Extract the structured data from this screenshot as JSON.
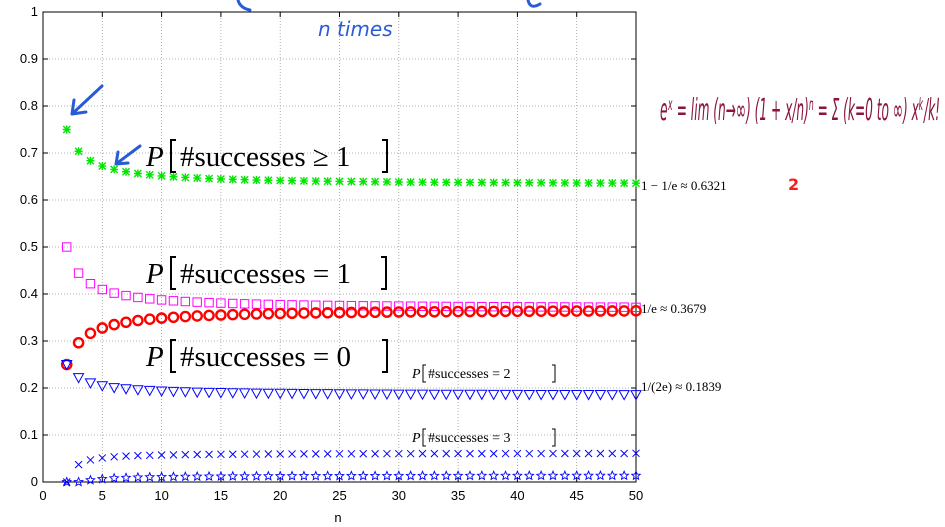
{
  "chart_data": {
    "type": "scatter",
    "xlabel": "n",
    "ylabel": "",
    "xlim": [
      0,
      50
    ],
    "ylim": [
      0,
      1
    ],
    "xticks": [
      0,
      5,
      10,
      15,
      20,
      25,
      30,
      35,
      40,
      45,
      50
    ],
    "yticks": [
      0,
      0.1,
      0.2,
      0.3,
      0.4,
      0.5,
      0.6,
      0.7,
      0.8,
      0.9,
      1
    ],
    "ytick_labels": [
      "0",
      "0.1",
      "0.2",
      "0.3",
      "0.4",
      "0.5",
      "0.6",
      "0.7",
      "0.8",
      "0.9",
      "1"
    ],
    "grid": true,
    "x": [
      2,
      3,
      4,
      5,
      6,
      7,
      8,
      9,
      10,
      11,
      12,
      13,
      14,
      15,
      16,
      17,
      18,
      19,
      20,
      21,
      22,
      23,
      24,
      25,
      26,
      27,
      28,
      29,
      30,
      31,
      32,
      33,
      34,
      35,
      36,
      37,
      38,
      39,
      40,
      41,
      42,
      43,
      44,
      45,
      46,
      47,
      48,
      49,
      50
    ],
    "series": [
      {
        "name": "P[#successes ≥ 1]",
        "marker": "asterisk",
        "color": "#00e600",
        "values": [
          0.75,
          0.7037,
          0.6836,
          0.6723,
          0.6651,
          0.6601,
          0.6564,
          0.6536,
          0.6513,
          0.6495,
          0.648,
          0.6467,
          0.6456,
          0.6447,
          0.6439,
          0.6432,
          0.6425,
          0.642,
          0.6415,
          0.641,
          0.6406,
          0.6402,
          0.6399,
          0.6396,
          0.6393,
          0.639,
          0.6388,
          0.6385,
          0.6383,
          0.6381,
          0.6379,
          0.6378,
          0.6376,
          0.6374,
          0.6373,
          0.6372,
          0.637,
          0.6369,
          0.6368,
          0.6367,
          0.6366,
          0.6365,
          0.6364,
          0.6363,
          0.6362,
          0.6361,
          0.6361,
          0.636,
          0.6358
        ]
      },
      {
        "name": "P[#successes = 1]",
        "marker": "square",
        "color": "#ff00ff",
        "values": [
          0.5,
          0.4444,
          0.4219,
          0.4096,
          0.4019,
          0.3966,
          0.3927,
          0.3897,
          0.3874,
          0.3855,
          0.384,
          0.3827,
          0.3816,
          0.3806,
          0.3798,
          0.3791,
          0.3785,
          0.3779,
          0.3774,
          0.3769,
          0.3765,
          0.3761,
          0.3758,
          0.3755,
          0.3752,
          0.3749,
          0.3747,
          0.3745,
          0.3743,
          0.3741,
          0.3739,
          0.3737,
          0.3736,
          0.3734,
          0.3733,
          0.3731,
          0.373,
          0.3729,
          0.3728,
          0.3727,
          0.3726,
          0.3725,
          0.3724,
          0.3723,
          0.3722,
          0.3721,
          0.3721,
          0.372,
          0.3716
        ]
      },
      {
        "name": "P[#successes = 0]",
        "marker": "circle",
        "color": "#ff0000",
        "values": [
          0.25,
          0.2963,
          0.3164,
          0.3277,
          0.3349,
          0.3399,
          0.3436,
          0.3464,
          0.3487,
          0.3505,
          0.352,
          0.3533,
          0.3544,
          0.3553,
          0.3561,
          0.3568,
          0.3575,
          0.358,
          0.3585,
          0.359,
          0.3594,
          0.3598,
          0.3601,
          0.3604,
          0.3607,
          0.361,
          0.3612,
          0.3615,
          0.3617,
          0.3619,
          0.3621,
          0.3622,
          0.3624,
          0.3626,
          0.3627,
          0.3628,
          0.363,
          0.3631,
          0.3632,
          0.3633,
          0.3634,
          0.3635,
          0.3636,
          0.3637,
          0.3638,
          0.3639,
          0.3639,
          0.364,
          0.3642
        ]
      },
      {
        "name": "P[#successes = 2]",
        "marker": "triangle-down",
        "color": "#0000ff",
        "values": [
          0.25,
          0.2222,
          0.2109,
          0.2048,
          0.2009,
          0.1983,
          0.1963,
          0.1949,
          0.1937,
          0.1928,
          0.192,
          0.1913,
          0.1908,
          0.1903,
          0.1899,
          0.1895,
          0.1892,
          0.1889,
          0.1887,
          0.1885,
          0.1883,
          0.1881,
          0.1879,
          0.1877,
          0.1876,
          0.1875,
          0.1873,
          0.1872,
          0.1871,
          0.187,
          0.1869,
          0.1868,
          0.1868,
          0.1867,
          0.1866,
          0.1866,
          0.1865,
          0.1864,
          0.1864,
          0.1863,
          0.1863,
          0.1862,
          0.1862,
          0.1861,
          0.1861,
          0.1861,
          0.186,
          0.186,
          0.1858
        ]
      },
      {
        "name": "P[#successes = 3]",
        "marker": "x",
        "color": "#0000ff",
        "values": [
          0.0,
          0.037,
          0.0469,
          0.0512,
          0.0536,
          0.0551,
          0.0561,
          0.0568,
          0.0574,
          0.0578,
          0.0582,
          0.0585,
          0.0587,
          0.0589,
          0.0591,
          0.0592,
          0.0594,
          0.0595,
          0.0596,
          0.0597,
          0.0598,
          0.0598,
          0.0599,
          0.06,
          0.06,
          0.0601,
          0.0601,
          0.0602,
          0.0602,
          0.0602,
          0.0603,
          0.0603,
          0.0603,
          0.0604,
          0.0604,
          0.0604,
          0.0604,
          0.0605,
          0.0605,
          0.0605,
          0.0605,
          0.0605,
          0.0606,
          0.0606,
          0.0606,
          0.0606,
          0.0606,
          0.0606,
          0.061
        ]
      },
      {
        "name": "",
        "marker": "star",
        "color": "#0000ff",
        "values": [
          0.0,
          0.0,
          0.0039,
          0.0064,
          0.008,
          0.009,
          0.0098,
          0.0103,
          0.0107,
          0.0111,
          0.0113,
          0.0116,
          0.0118,
          0.0119,
          0.0121,
          0.0122,
          0.0123,
          0.0124,
          0.0125,
          0.0126,
          0.0127,
          0.0127,
          0.0128,
          0.0128,
          0.0129,
          0.0129,
          0.013,
          0.013,
          0.0131,
          0.0131,
          0.0131,
          0.0132,
          0.0132,
          0.0132,
          0.0133,
          0.0133,
          0.0133,
          0.0133,
          0.0134,
          0.0134,
          0.0134,
          0.0134,
          0.0134,
          0.0135,
          0.0135,
          0.0135,
          0.0135,
          0.0135,
          0.0135
        ]
      }
    ]
  },
  "annotations": {
    "geq1": {
      "P": "P",
      "body": "#successes ≥ 1",
      "value": "1 − 1/e ≈ 0.6321"
    },
    "eq1": {
      "P": "P",
      "body": "#successes = 1",
      "value": "1/e ≈ 0.3679"
    },
    "eq0": {
      "P": "P",
      "body": "#successes = 0"
    },
    "eq2": {
      "P": "P",
      "body": "#successes = 2",
      "value": "1/(2e) ≈ 0.1839"
    },
    "eq3": {
      "P": "P",
      "body": "#successes = 3"
    }
  },
  "handwriting": {
    "top_note": "n times",
    "red_digit": "2",
    "formula": "eˣ = lim (n→∞) (1 + x/n)ⁿ = Σ (k=0 to ∞) xᵏ/k!"
  },
  "colors": {
    "grid": "#9a9a9a",
    "ink_maroon": "#8a1538",
    "ink_blue": "#2a5bd7",
    "red_digit": "#ff1a1a"
  }
}
